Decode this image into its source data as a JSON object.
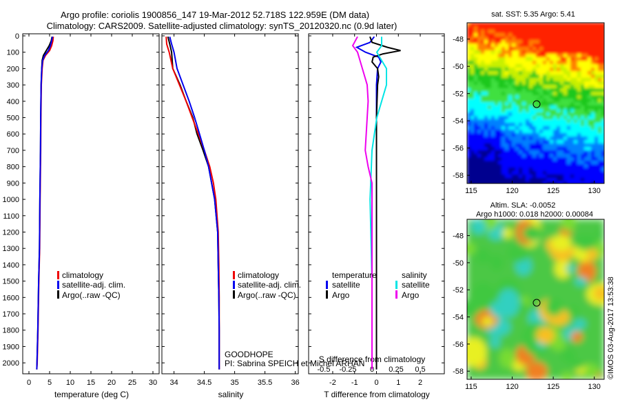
{
  "header": {
    "line1": "Argo profile: coriolis 1900856_147 19-Mar-2012 52.718S 122.959E (DM data)",
    "line2": "Climatology: CARS2009. Satellite-adjusted climatology: synTS_20120320.nc (0.9d later)"
  },
  "depth_ticks": [
    0,
    100,
    200,
    300,
    400,
    500,
    600,
    700,
    800,
    900,
    1000,
    1100,
    1200,
    1300,
    1400,
    1500,
    1600,
    1700,
    1800,
    1900,
    2000
  ],
  "colors": {
    "climatology": "#ee0000",
    "satellite": "#0000ee",
    "argo": "#000000",
    "sal_satellite": "#00e5e5",
    "sal_argo": "#ee00ee"
  },
  "chart_data": [
    {
      "type": "line",
      "name": "temperature-profile",
      "xlabel": "temperature (deg C)",
      "xlim": [
        -1.5,
        31.5
      ],
      "ylim": [
        0,
        2050
      ],
      "x_ticks": [
        0,
        5,
        10,
        15,
        20,
        25,
        30
      ],
      "legend": [
        "climatology",
        "satellite-adj. clim.",
        "Argo(..raw -QC)"
      ],
      "series": [
        {
          "name": "climatology",
          "depth": [
            5,
            30,
            60,
            90,
            120,
            150,
            200,
            300,
            500,
            700,
            1000,
            1300,
            1500,
            1800,
            2000,
            2040
          ],
          "values": [
            5.9,
            5.8,
            5.5,
            5.0,
            4.0,
            3.4,
            3.2,
            3.0,
            2.9,
            2.85,
            2.7,
            2.6,
            2.4,
            2.2,
            2.0,
            1.9
          ]
        },
        {
          "name": "satellite-adj. clim.",
          "depth": [
            5,
            30,
            60,
            90,
            120,
            150,
            200,
            300,
            500,
            700,
            1000,
            1300,
            1500,
            1800,
            2000,
            2040
          ],
          "values": [
            5.7,
            5.5,
            5.2,
            4.7,
            3.8,
            3.3,
            3.1,
            2.95,
            2.85,
            2.8,
            2.65,
            2.55,
            2.35,
            2.15,
            1.95,
            1.9
          ]
        },
        {
          "name": "Argo(..raw -QC)",
          "depth": [
            5,
            30,
            60,
            90,
            120,
            150,
            200,
            300,
            500,
            700,
            1000,
            1300,
            1500,
            1800,
            2000,
            2040
          ],
          "values": [
            5.6,
            5.4,
            4.9,
            4.2,
            3.5,
            3.2,
            3.1,
            2.95,
            2.85,
            2.8,
            2.65,
            2.55,
            2.35,
            2.15,
            1.95,
            1.9
          ]
        }
      ]
    },
    {
      "type": "line",
      "name": "salinity-profile",
      "xlabel": "salinity",
      "xlim": [
        33.8,
        36.05
      ],
      "ylim": [
        0,
        2050
      ],
      "x_ticks": [
        34,
        34.5,
        35,
        35.5,
        36
      ],
      "legend": [
        "climatology",
        "satellite-adj. clim.",
        "Argo(..raw -QC)"
      ],
      "annotation": [
        "GOODHOPE",
        "PI: Sabrina SPEICH et Michel ARHAN"
      ],
      "series": [
        {
          "name": "climatology",
          "depth": [
            5,
            50,
            100,
            200,
            300,
            400,
            500,
            600,
            700,
            800,
            900,
            1000,
            1200,
            1400,
            1600,
            1800,
            2000,
            2040
          ],
          "values": [
            33.87,
            33.88,
            33.92,
            33.98,
            34.09,
            34.2,
            34.3,
            34.4,
            34.5,
            34.59,
            34.65,
            34.69,
            34.73,
            34.74,
            34.745,
            34.745,
            34.745,
            34.745
          ]
        },
        {
          "name": "satellite-adj. clim.",
          "depth": [
            5,
            50,
            100,
            200,
            300,
            400,
            500,
            600,
            700,
            800,
            900,
            1000,
            1200,
            1400,
            1600,
            1800,
            2000,
            2040
          ],
          "values": [
            33.93,
            33.96,
            34.0,
            34.05,
            34.15,
            34.25,
            34.34,
            34.42,
            34.5,
            34.57,
            34.62,
            34.67,
            34.72,
            34.73,
            34.74,
            34.745,
            34.745,
            34.745
          ]
        },
        {
          "name": "Argo(..raw -QC)",
          "depth": [
            5,
            50,
            100,
            200,
            300,
            400,
            500,
            600,
            700,
            800,
            900,
            1000,
            1200,
            1400,
            1600,
            1800,
            2000,
            2040
          ],
          "values": [
            33.9,
            33.93,
            33.96,
            33.98,
            34.1,
            34.2,
            34.31,
            34.38,
            34.48,
            34.57,
            34.62,
            34.67,
            34.72,
            34.73,
            34.74,
            34.745,
            34.745,
            34.745
          ]
        }
      ]
    },
    {
      "type": "line",
      "name": "difference-profile",
      "xlabel": "T difference from climatology",
      "xlabel_top": "S difference from climatology",
      "xlim": [
        -3.1,
        3.1
      ],
      "ylim": [
        0,
        2050
      ],
      "x_ticks": [
        -2,
        -1,
        0,
        1,
        2
      ],
      "top_ticks": [
        -0.5,
        -0.25,
        0,
        0.25,
        0.5
      ],
      "top_tick_labels": [
        "-0.5",
        "-0.25",
        "0",
        "0.25",
        "0.5"
      ],
      "legend_headers": [
        "temperature",
        "salinity"
      ],
      "legend": [
        "satellite",
        "Argo",
        "satellite",
        "Argo"
      ],
      "series": [
        {
          "name": "temperature satellite",
          "depth": [
            5,
            40,
            70,
            100,
            130,
            160,
            200,
            300,
            500,
            700,
            1000,
            1500,
            2040
          ],
          "values": [
            -0.1,
            -0.3,
            -0.9,
            -0.5,
            0.1,
            0.2,
            0.05,
            0.0,
            0.0,
            0.0,
            0.0,
            0.0,
            0.0
          ]
        },
        {
          "name": "temperature Argo",
          "depth": [
            5,
            40,
            70,
            90,
            110,
            130,
            160,
            200,
            250,
            300,
            500,
            700,
            1000,
            1500,
            2040
          ],
          "values": [
            -0.3,
            -0.2,
            0.5,
            1.1,
            0.3,
            -0.15,
            -0.2,
            0.05,
            0.1,
            0.05,
            0.0,
            0.0,
            0.0,
            0.0,
            0.0
          ]
        },
        {
          "name": "salinity satellite",
          "depth": [
            5,
            60,
            100,
            150,
            200,
            300,
            400,
            500,
            700,
            1000,
            1500,
            2040
          ],
          "values": [
            0.1,
            0.1,
            0.05,
            0.1,
            0.15,
            0.15,
            0.1,
            0.05,
            0.0,
            -0.02,
            0.0,
            0.0
          ]
        },
        {
          "name": "salinity Argo",
          "depth": [
            5,
            60,
            100,
            200,
            300,
            400,
            500,
            600,
            700,
            800,
            900,
            1000,
            1500,
            2040
          ],
          "values": [
            -0.15,
            -0.2,
            -0.15,
            -0.1,
            -0.05,
            -0.04,
            -0.05,
            -0.06,
            -0.07,
            -0.04,
            0.0,
            0.0,
            0.0,
            0.0
          ]
        }
      ]
    },
    {
      "type": "heatmap",
      "name": "sst-map",
      "title": "sat. SST: 5.35 Argo: 5.41",
      "xlim": [
        114.5,
        131.2
      ],
      "ylim": [
        -58.6,
        -46.8
      ],
      "x_ticks": [
        115,
        120,
        125,
        130
      ],
      "y_ticks": [
        -48,
        -50,
        -52,
        -54,
        -56,
        -58
      ],
      "argo_position": [
        122.959,
        -52.718
      ]
    },
    {
      "type": "heatmap",
      "name": "sla-map",
      "title": "Altim. SLA: -0.0052",
      "subtitle": "Argo h1000: 0.018 h2000: 0.00084",
      "xlim": [
        114.5,
        131.2
      ],
      "ylim": [
        -58.6,
        -46.8
      ],
      "x_ticks": [
        115,
        120,
        125,
        130
      ],
      "y_ticks": [
        -48,
        -50,
        -52,
        -54,
        -56,
        -58
      ],
      "argo_position": [
        122.959,
        -52.718
      ],
      "watermark": "©IMOS 03-Aug-2017 13:53:38"
    }
  ]
}
